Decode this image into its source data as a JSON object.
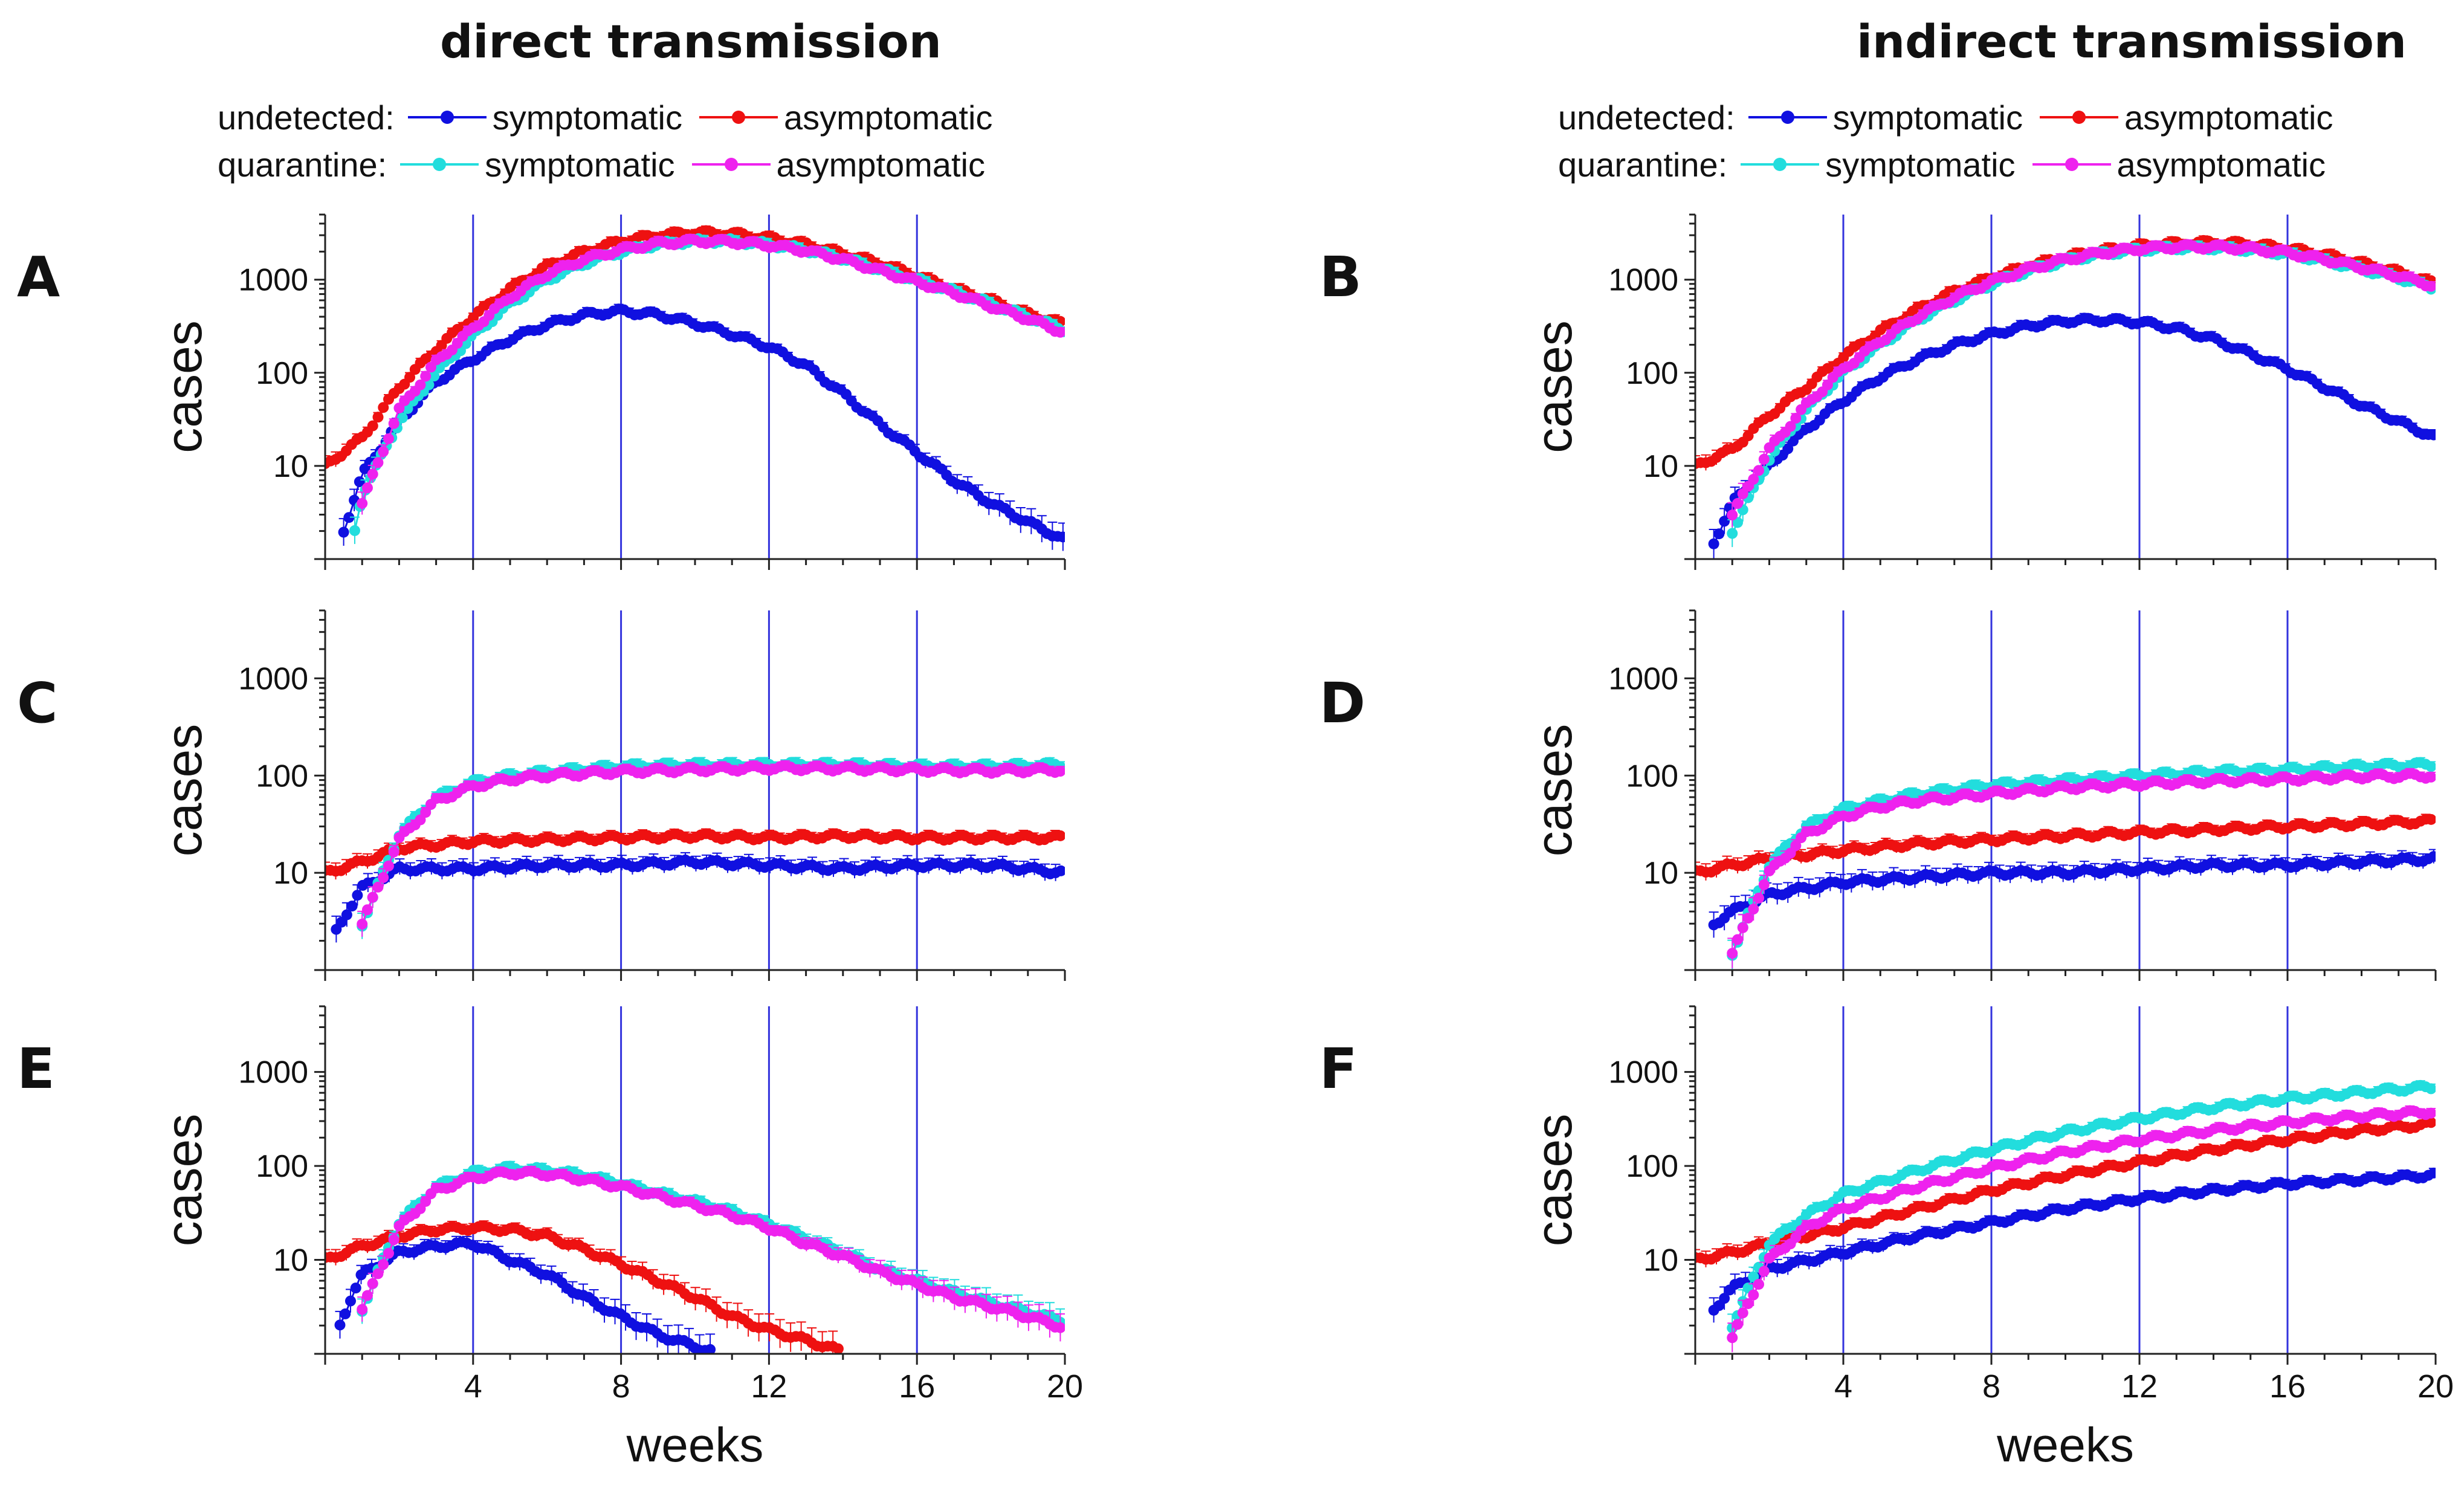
{
  "titles": {
    "left": "direct transmission",
    "right": "indirect transmission"
  },
  "legend": {
    "undetected_label": "undetected:",
    "quarantine_label": "quarantine:",
    "symptomatic": "symptomatic",
    "asymptomatic": "asymptomatic"
  },
  "colors": {
    "undetected_symptomatic": "#1010e0",
    "undetected_asymptomatic": "#ee1111",
    "quarantine_symptomatic": "#22dddd",
    "quarantine_asymptomatic": "#ee22ee",
    "vline": "#3333dd"
  },
  "chart_data": [
    {
      "panel": "A",
      "type": "line",
      "title": "direct transmission",
      "ylabel": "cases",
      "xlabel": "",
      "ylim": [
        1,
        5000
      ],
      "yscale": "log",
      "xlim": [
        0,
        20
      ],
      "xticks": [
        4,
        8,
        12,
        16,
        20
      ],
      "yticks": [
        10,
        100,
        1000
      ],
      "vlines": [
        4,
        8,
        12,
        16
      ],
      "series": [
        {
          "name": "undetected symptomatic",
          "x": [
            0.5,
            1,
            2,
            3,
            4,
            5,
            6,
            7,
            8,
            9,
            10,
            11,
            12,
            13,
            14,
            15,
            16,
            17,
            18,
            19,
            20
          ],
          "values": [
            2,
            8,
            30,
            80,
            140,
            230,
            330,
            420,
            460,
            420,
            340,
            260,
            190,
            120,
            60,
            28,
            14,
            7,
            4,
            2.5,
            1.6
          ]
        },
        {
          "name": "undetected asymptomatic",
          "x": [
            0,
            1,
            2,
            3,
            4,
            5,
            6,
            7,
            8,
            9,
            10,
            11,
            12,
            13,
            14,
            15,
            16,
            17,
            18,
            19,
            20
          ],
          "values": [
            10,
            20,
            70,
            180,
            400,
            800,
            1400,
            2000,
            2600,
            3000,
            3200,
            3100,
            2800,
            2400,
            1900,
            1500,
            1100,
            800,
            600,
            430,
            330
          ]
        },
        {
          "name": "quarantine symptomatic",
          "x": [
            0.8,
            1,
            2,
            3,
            4,
            5,
            6,
            7,
            8,
            9,
            10,
            11,
            12,
            13,
            14,
            15,
            16,
            17,
            18,
            19,
            20
          ],
          "values": [
            2,
            5,
            30,
            100,
            250,
            550,
            1000,
            1500,
            2000,
            2400,
            2600,
            2600,
            2400,
            2100,
            1700,
            1300,
            1000,
            750,
            550,
            400,
            290
          ]
        },
        {
          "name": "quarantine asymptomatic",
          "x": [
            1,
            2,
            3,
            4,
            5,
            6,
            7,
            8,
            9,
            10,
            11,
            12,
            13,
            14,
            15,
            16,
            17,
            18,
            19,
            20
          ],
          "values": [
            4,
            40,
            130,
            300,
            650,
            1150,
            1650,
            2100,
            2450,
            2600,
            2550,
            2350,
            2050,
            1650,
            1250,
            950,
            720,
            520,
            380,
            270
          ]
        }
      ]
    },
    {
      "panel": "B",
      "type": "line",
      "title": "indirect transmission",
      "ylabel": "cases",
      "xlabel": "",
      "ylim": [
        1,
        5000
      ],
      "yscale": "log",
      "xlim": [
        0,
        20
      ],
      "xticks": [
        4,
        8,
        12,
        16,
        20
      ],
      "yticks": [
        10,
        100,
        1000
      ],
      "vlines": [
        4,
        8,
        12,
        16
      ],
      "series": [
        {
          "name": "undetected symptomatic",
          "x": [
            0.5,
            1,
            2,
            3,
            4,
            5,
            6,
            7,
            8,
            9,
            10,
            11,
            12,
            13,
            14,
            15,
            16,
            17,
            18,
            19,
            20
          ],
          "values": [
            1.5,
            4,
            10,
            25,
            50,
            90,
            140,
            200,
            260,
            320,
            360,
            370,
            350,
            300,
            230,
            160,
            110,
            70,
            45,
            30,
            20
          ]
        },
        {
          "name": "undetected asymptomatic",
          "x": [
            0,
            1,
            2,
            3,
            4,
            5,
            6,
            7,
            8,
            9,
            10,
            11,
            12,
            13,
            14,
            15,
            16,
            17,
            18,
            19,
            20
          ],
          "values": [
            10,
            15,
            35,
            70,
            150,
            280,
            480,
            750,
            1050,
            1400,
            1750,
            2050,
            2300,
            2450,
            2500,
            2400,
            2150,
            1850,
            1500,
            1200,
            900
          ]
        },
        {
          "name": "quarantine symptomatic",
          "x": [
            1,
            2,
            3,
            4,
            5,
            6,
            7,
            8,
            9,
            10,
            11,
            12,
            13,
            14,
            15,
            16,
            17,
            18,
            19,
            20
          ],
          "values": [
            2,
            12,
            40,
            100,
            200,
            370,
            600,
            900,
            1250,
            1600,
            1900,
            2100,
            2200,
            2200,
            2100,
            1900,
            1600,
            1300,
            1050,
            800
          ]
        },
        {
          "name": "quarantine asymptomatic",
          "x": [
            1,
            2,
            3,
            4,
            5,
            6,
            7,
            8,
            9,
            10,
            11,
            12,
            13,
            14,
            15,
            16,
            17,
            18,
            19,
            20
          ],
          "values": [
            3,
            15,
            45,
            110,
            220,
            400,
            650,
            950,
            1300,
            1650,
            1950,
            2150,
            2250,
            2250,
            2150,
            1950,
            1650,
            1350,
            1100,
            850
          ]
        }
      ]
    },
    {
      "panel": "C",
      "type": "line",
      "ylabel": "cases",
      "xlabel": "",
      "ylim": [
        1,
        5000
      ],
      "yscale": "log",
      "xlim": [
        0,
        20
      ],
      "xticks": [
        4,
        8,
        12,
        16,
        20
      ],
      "yticks": [
        10,
        100,
        1000
      ],
      "vlines": [
        4,
        8,
        12,
        16
      ],
      "series": [
        {
          "name": "undetected symptomatic",
          "x": [
            0.3,
            0.6,
            1,
            2,
            4,
            6,
            8,
            10,
            12,
            14,
            16,
            18,
            20
          ],
          "values": [
            2.5,
            4,
            7,
            11,
            11,
            12,
            12,
            13,
            12,
            11,
            12,
            12,
            10
          ]
        },
        {
          "name": "undetected asymptomatic",
          "x": [
            0,
            1,
            2,
            4,
            6,
            8,
            10,
            12,
            14,
            16,
            18,
            20
          ],
          "values": [
            10,
            13,
            18,
            21,
            22,
            23,
            24,
            23,
            24,
            23,
            23,
            23
          ]
        },
        {
          "name": "quarantine symptomatic",
          "x": [
            1,
            2,
            3,
            4,
            5,
            6,
            8,
            10,
            12,
            14,
            16,
            18,
            20
          ],
          "values": [
            3,
            25,
            60,
            85,
            100,
            110,
            125,
            130,
            130,
            130,
            125,
            125,
            130
          ]
        },
        {
          "name": "quarantine asymptomatic",
          "x": [
            1,
            2,
            3,
            4,
            5,
            6,
            8,
            10,
            12,
            14,
            16,
            18,
            20
          ],
          "values": [
            3,
            22,
            55,
            78,
            92,
            100,
            110,
            115,
            120,
            118,
            115,
            112,
            115
          ]
        }
      ]
    },
    {
      "panel": "D",
      "type": "line",
      "ylabel": "cases",
      "xlabel": "",
      "ylim": [
        1,
        5000
      ],
      "yscale": "log",
      "xlim": [
        0,
        20
      ],
      "xticks": [
        4,
        8,
        12,
        16,
        20
      ],
      "yticks": [
        10,
        100,
        1000
      ],
      "vlines": [
        4,
        8,
        12,
        16
      ],
      "series": [
        {
          "name": "undetected symptomatic",
          "x": [
            0.5,
            1,
            2,
            4,
            6,
            8,
            10,
            12,
            14,
            16,
            18,
            20
          ],
          "values": [
            3,
            4,
            6,
            8,
            9,
            10,
            10,
            11,
            12,
            12,
            13,
            14
          ]
        },
        {
          "name": "undetected asymptomatic",
          "x": [
            0,
            1,
            2,
            4,
            6,
            8,
            10,
            12,
            14,
            16,
            18,
            20
          ],
          "values": [
            10,
            12,
            14,
            17,
            20,
            22,
            24,
            26,
            28,
            30,
            32,
            34
          ]
        },
        {
          "name": "quarantine symptomatic",
          "x": [
            1,
            2,
            3,
            4,
            5,
            6,
            8,
            10,
            12,
            14,
            16,
            18,
            20
          ],
          "values": [
            1.5,
            12,
            30,
            45,
            55,
            65,
            80,
            90,
            100,
            110,
            115,
            125,
            130
          ]
        },
        {
          "name": "quarantine asymptomatic",
          "x": [
            1,
            2,
            3,
            4,
            5,
            6,
            8,
            10,
            12,
            14,
            16,
            18,
            20
          ],
          "values": [
            1.5,
            10,
            25,
            38,
            48,
            55,
            65,
            75,
            82,
            88,
            92,
            98,
            100
          ]
        }
      ]
    },
    {
      "panel": "E",
      "type": "line",
      "ylabel": "cases",
      "xlabel": "weeks",
      "ylim": [
        1,
        5000
      ],
      "yscale": "log",
      "xlim": [
        0,
        20
      ],
      "xticks": [
        4,
        8,
        12,
        16,
        20
      ],
      "yticks": [
        10,
        100,
        1000
      ],
      "vlines": [
        4,
        8,
        12,
        16
      ],
      "series": [
        {
          "name": "undetected symptomatic",
          "x": [
            0.4,
            0.7,
            1,
            2,
            3,
            4,
            5,
            6,
            7,
            8,
            9,
            10,
            10.5
          ],
          "values": [
            2,
            4,
            7,
            12,
            14,
            15,
            10,
            7,
            4,
            2.5,
            1.6,
            1.2,
            1.05
          ]
        },
        {
          "name": "undetected asymptomatic",
          "x": [
            0,
            1,
            2,
            3,
            4,
            5,
            6,
            7,
            8,
            9,
            10,
            11,
            12,
            13,
            14
          ],
          "values": [
            10,
            14,
            18,
            21,
            22,
            21,
            18,
            13,
            9,
            6,
            4,
            2.5,
            1.8,
            1.4,
            1.05
          ]
        },
        {
          "name": "quarantine symptomatic",
          "x": [
            1,
            2,
            3,
            4,
            5,
            6,
            7,
            8,
            9,
            10,
            11,
            12,
            13,
            14,
            15,
            16,
            17,
            18,
            19,
            20
          ],
          "values": [
            3,
            25,
            60,
            85,
            95,
            90,
            80,
            65,
            52,
            42,
            33,
            24,
            17,
            12,
            8,
            6,
            4.5,
            3.5,
            2.8,
            2.2
          ]
        },
        {
          "name": "quarantine asymptomatic",
          "x": [
            1,
            2,
            3,
            4,
            5,
            6,
            7,
            8,
            9,
            10,
            11,
            12,
            13,
            14,
            15,
            16,
            17,
            18,
            19,
            20
          ],
          "values": [
            3,
            22,
            55,
            75,
            85,
            82,
            72,
            60,
            48,
            38,
            30,
            22,
            15,
            11,
            7.5,
            5.5,
            4,
            3.2,
            2.5,
            1.9
          ]
        }
      ]
    },
    {
      "panel": "F",
      "type": "line",
      "ylabel": "cases",
      "xlabel": "weeks",
      "ylim": [
        1,
        5000
      ],
      "yscale": "log",
      "xlim": [
        0,
        20
      ],
      "xticks": [
        4,
        8,
        12,
        16,
        20
      ],
      "yticks": [
        10,
        100,
        1000
      ],
      "vlines": [
        4,
        8,
        12,
        16
      ],
      "series": [
        {
          "name": "undetected symptomatic",
          "x": [
            0.5,
            1,
            2,
            4,
            6,
            8,
            10,
            12,
            14,
            16,
            18,
            20
          ],
          "values": [
            3,
            5,
            8,
            12,
            18,
            25,
            35,
            45,
            55,
            65,
            72,
            80
          ]
        },
        {
          "name": "undetected asymptomatic",
          "x": [
            0,
            1,
            2,
            4,
            6,
            8,
            10,
            12,
            14,
            16,
            18,
            20
          ],
          "values": [
            10,
            12,
            15,
            22,
            35,
            55,
            80,
            110,
            150,
            190,
            240,
            280
          ]
        },
        {
          "name": "quarantine symptomatic",
          "x": [
            1,
            2,
            3,
            4,
            6,
            8,
            10,
            12,
            14,
            16,
            18,
            20
          ],
          "values": [
            2,
            15,
            30,
            50,
            90,
            150,
            230,
            320,
            420,
            520,
            610,
            700
          ]
        },
        {
          "name": "quarantine asymptomatic",
          "x": [
            1,
            2,
            3,
            4,
            6,
            8,
            10,
            12,
            14,
            16,
            18,
            20
          ],
          "values": [
            1.5,
            10,
            22,
            35,
            60,
            95,
            140,
            190,
            240,
            290,
            340,
            380
          ]
        }
      ]
    }
  ]
}
